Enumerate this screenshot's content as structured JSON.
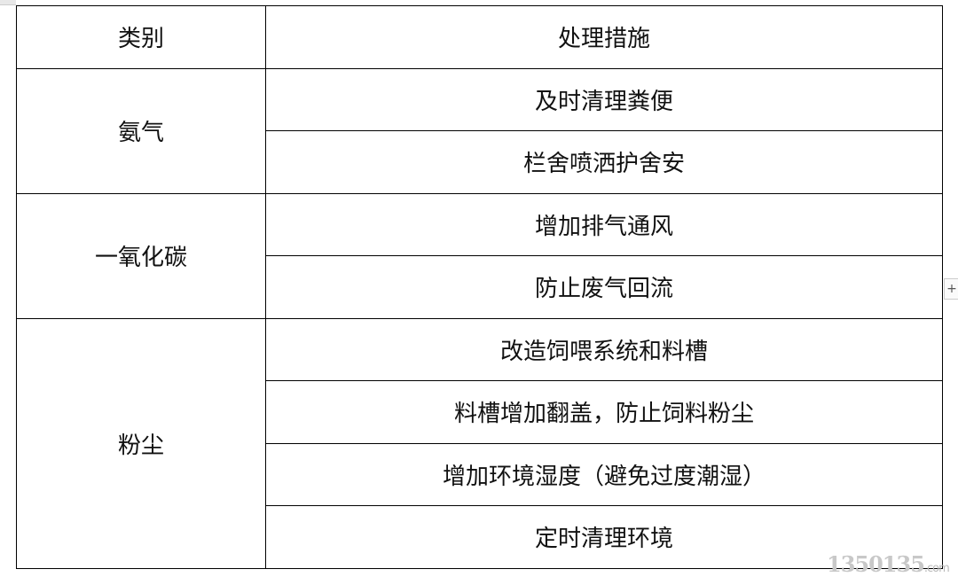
{
  "table": {
    "headers": [
      "类别",
      "处理措施"
    ],
    "groups": [
      {
        "category": "氨气",
        "measures": [
          "及时清理粪便",
          "栏舍喷洒护舍安"
        ]
      },
      {
        "category": "一氧化碳",
        "measures": [
          "增加排气通风",
          "防止废气回流"
        ]
      },
      {
        "category": "粉尘",
        "measures": [
          "改造饲喂系统和料槽",
          "料槽增加翻盖，防止饲料粉尘",
          "增加环境湿度（避免过度潮湿）",
          "定时清理环境"
        ]
      }
    ]
  },
  "ui": {
    "expand_button": "+"
  },
  "watermark": {
    "text": "1350135",
    "suffix": ".com"
  }
}
